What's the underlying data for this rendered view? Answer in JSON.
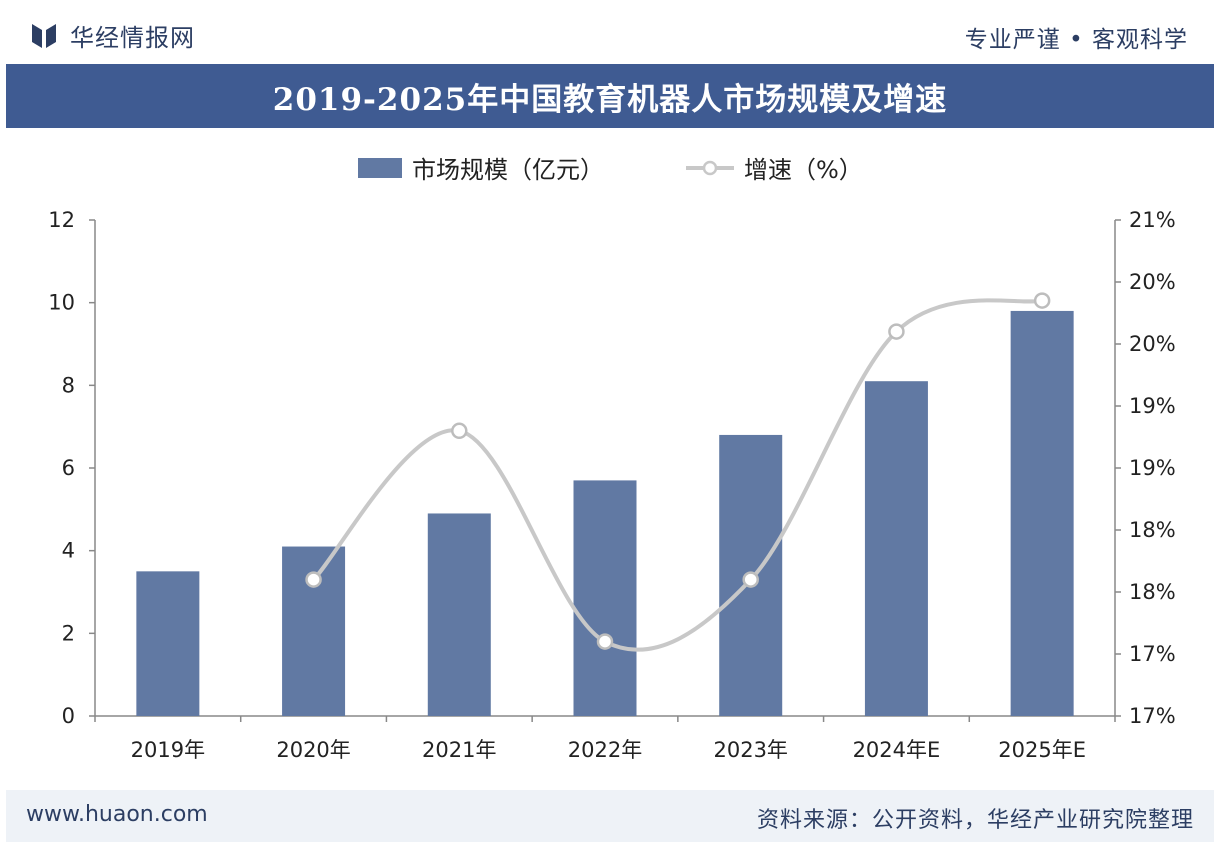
{
  "header": {
    "brand_name": "华经情报网",
    "slogan": "专业严谨 • 客观科学",
    "title": "2019-2025年中国教育机器人市场规模及增速"
  },
  "footer": {
    "website": "www.huaon.com",
    "source": "资料来源：公开资料，华经产业研究院整理"
  },
  "colors": {
    "bar": "#6179a3",
    "line": "#c8c8c8",
    "title_bg": "#3f5b92",
    "text": "#2c3e63"
  },
  "chart_data": {
    "type": "bar",
    "categories": [
      "2019年",
      "2020年",
      "2021年",
      "2022年",
      "2023年",
      "2024年E",
      "2025年E"
    ],
    "series": [
      {
        "name": "市场规模（亿元）",
        "type": "bar",
        "axis": "left",
        "values": [
          3.5,
          4.1,
          4.9,
          5.7,
          6.8,
          8.1,
          9.8
        ]
      },
      {
        "name": "增速（%）",
        "type": "line",
        "axis": "right",
        "values": [
          null,
          18.1,
          19.3,
          17.6,
          18.1,
          20.1,
          20.35
        ]
      }
    ],
    "y_left": {
      "min": 0,
      "max": 12,
      "ticks": [
        "0",
        "2",
        "4",
        "6",
        "8",
        "10",
        "12"
      ]
    },
    "y_right": {
      "min": 17,
      "max": 21,
      "ticks": [
        "17%",
        "17%",
        "18%",
        "18%",
        "19%",
        "19%",
        "20%",
        "20%",
        "21%"
      ]
    },
    "legend_position": "top-center",
    "grid": false
  }
}
